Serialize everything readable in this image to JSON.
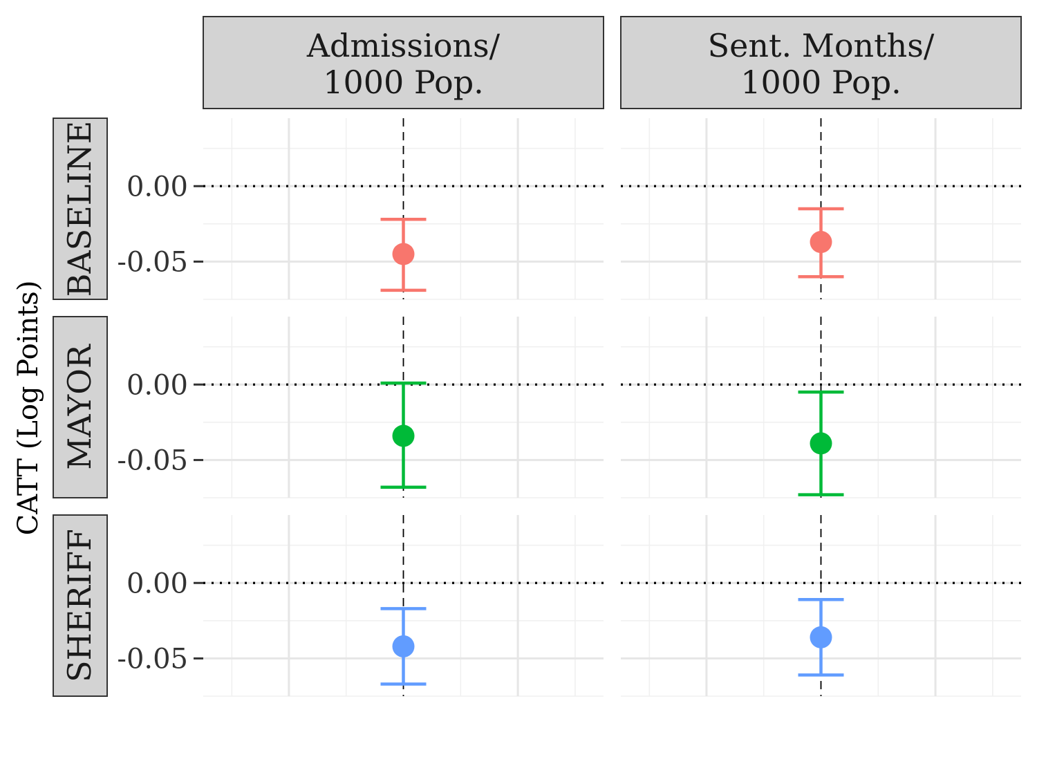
{
  "chart_data": {
    "type": "scatter",
    "ylabel": "CATT (Log Points)",
    "xlabel": "",
    "column_facets": [
      {
        "key": "admissions",
        "label_lines": [
          "Admissions/",
          "1000 Pop."
        ]
      },
      {
        "key": "sent_months",
        "label_lines": [
          "Sent. Months/",
          "1000 Pop."
        ]
      }
    ],
    "row_facets": [
      {
        "key": "baseline",
        "label": "BASELINE",
        "color": "#F8766D"
      },
      {
        "key": "mayor",
        "label": "MAYOR",
        "color": "#00BA38"
      },
      {
        "key": "sheriff",
        "label": "SHERIFF",
        "color": "#619CFF"
      }
    ],
    "ylim": [
      -0.075,
      0.045
    ],
    "y_ticks": [
      0.0,
      -0.05
    ],
    "y_tick_labels": [
      "0.00",
      "-0.05"
    ],
    "y_minor_ticks": [
      0.025,
      -0.025,
      -0.075
    ],
    "reference_lines": {
      "horizontal_y": 0.0,
      "horizontal_style": "dotted",
      "vertical_style": "dashed"
    },
    "grid": true,
    "legend": "none",
    "points": [
      {
        "row": "baseline",
        "col": "admissions",
        "estimate": -0.045,
        "lower": -0.069,
        "upper": -0.022
      },
      {
        "row": "baseline",
        "col": "sent_months",
        "estimate": -0.037,
        "lower": -0.06,
        "upper": -0.015
      },
      {
        "row": "mayor",
        "col": "admissions",
        "estimate": -0.034,
        "lower": -0.068,
        "upper": 0.001
      },
      {
        "row": "mayor",
        "col": "sent_months",
        "estimate": -0.039,
        "lower": -0.073,
        "upper": -0.005
      },
      {
        "row": "sheriff",
        "col": "admissions",
        "estimate": -0.042,
        "lower": -0.067,
        "upper": -0.017
      },
      {
        "row": "sheriff",
        "col": "sent_months",
        "estimate": -0.036,
        "lower": -0.061,
        "upper": -0.011
      }
    ]
  }
}
